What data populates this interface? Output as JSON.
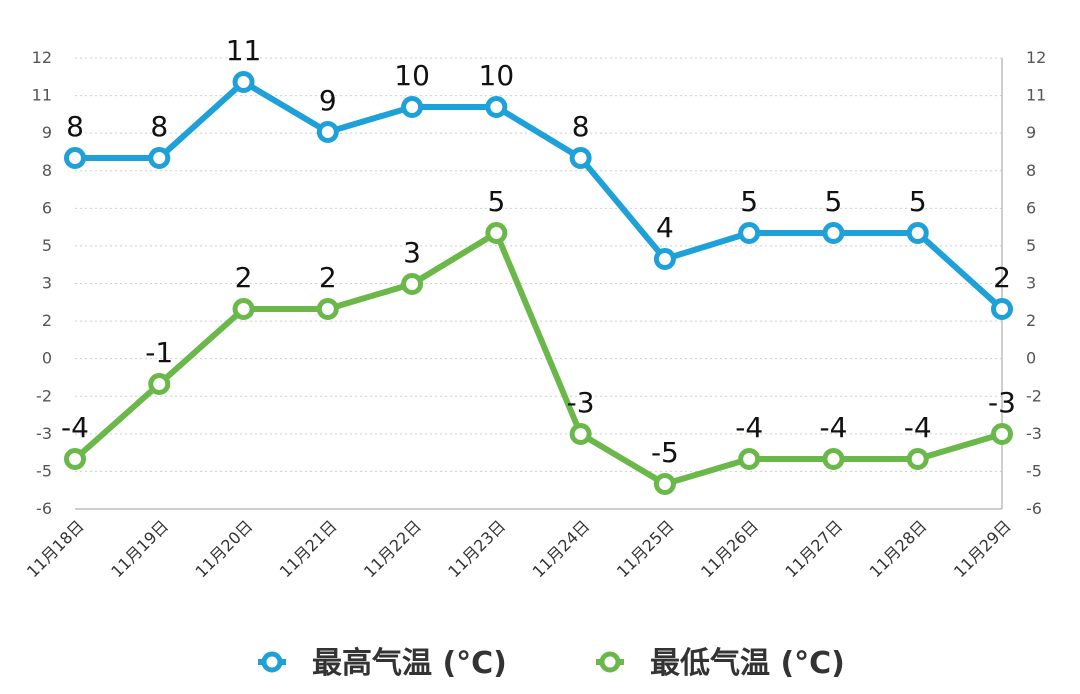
{
  "chart_data": {
    "type": "line",
    "categories": [
      "11月18日",
      "11月19日",
      "11月20日",
      "11月21日",
      "11月22日",
      "11月23日",
      "11月24日",
      "11月25日",
      "11月26日",
      "11月27日",
      "11月28日",
      "11月29日"
    ],
    "series": [
      {
        "name": "最高气温 (°C)",
        "color": "#1ea0d9",
        "values": [
          8,
          8,
          11,
          9,
          10,
          10,
          8,
          4,
          5,
          5,
          5,
          2
        ]
      },
      {
        "name": "最低气温 (°C)",
        "color": "#6ab84a",
        "values": [
          -4,
          -1,
          2,
          2,
          3,
          5,
          -3,
          -5,
          -4,
          -4,
          -4,
          -3
        ]
      }
    ],
    "y_tick_labels": [
      "12",
      "11",
      "9",
      "8",
      "6",
      "5",
      "3",
      "2",
      "0",
      "-2",
      "-3",
      "-5",
      "-6"
    ],
    "ylim": [
      -6,
      12
    ],
    "grid": true,
    "legend_position": "bottom-center"
  }
}
